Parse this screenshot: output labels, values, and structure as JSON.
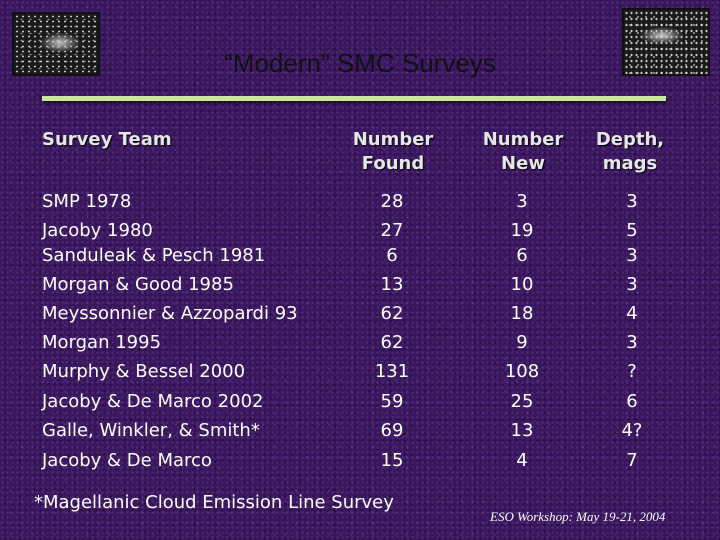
{
  "slide": {
    "title": "“Modern” SMC Surveys",
    "images": [
      "smc-photo-thumbnail-left",
      "smc-photo-thumbnail-right"
    ]
  },
  "table": {
    "headers": {
      "team": "Survey Team",
      "found_line1": "Number",
      "found_line2": "Found",
      "new_line1": "Number",
      "new_line2": "New",
      "depth_line1": "Depth,",
      "depth_line2": "mags"
    },
    "rows": [
      {
        "team": "SMP 1978",
        "found": "28",
        "new": "3",
        "depth": "3"
      },
      {
        "team": "Jacoby 1980",
        "found": "27",
        "new": "19",
        "depth": "5"
      },
      {
        "team": "Sanduleak & Pesch 1981",
        "found": "6",
        "new": "6",
        "depth": "3"
      },
      {
        "team": "Morgan & Good 1985",
        "found": "13",
        "new": "10",
        "depth": "3"
      },
      {
        "team": "Meyssonnier & Azzopardi 93",
        "found": "62",
        "new": "18",
        "depth": "4"
      },
      {
        "team": "Morgan 1995",
        "found": "62",
        "new": "9",
        "depth": "3"
      },
      {
        "team": "Murphy & Bessel 2000",
        "found": "131",
        "new": "108",
        "depth": "?"
      },
      {
        "team": "Jacoby & De Marco 2002",
        "found": "59",
        "new": "25",
        "depth": "6"
      },
      {
        "team": "Galle, Winkler, & Smith*",
        "found": "69",
        "new": "13",
        "depth": "4?"
      },
      {
        "team": "Jacoby & De Marco",
        "found": "15",
        "new": "4",
        "depth": "7"
      }
    ]
  },
  "footnote": "*Magellanic Cloud Emission Line Survey",
  "workshop": "ESO Workshop: May 19-21, 2004",
  "colors": {
    "background": "#3a1560",
    "divider": "#c9e89a",
    "title": "#111111"
  }
}
